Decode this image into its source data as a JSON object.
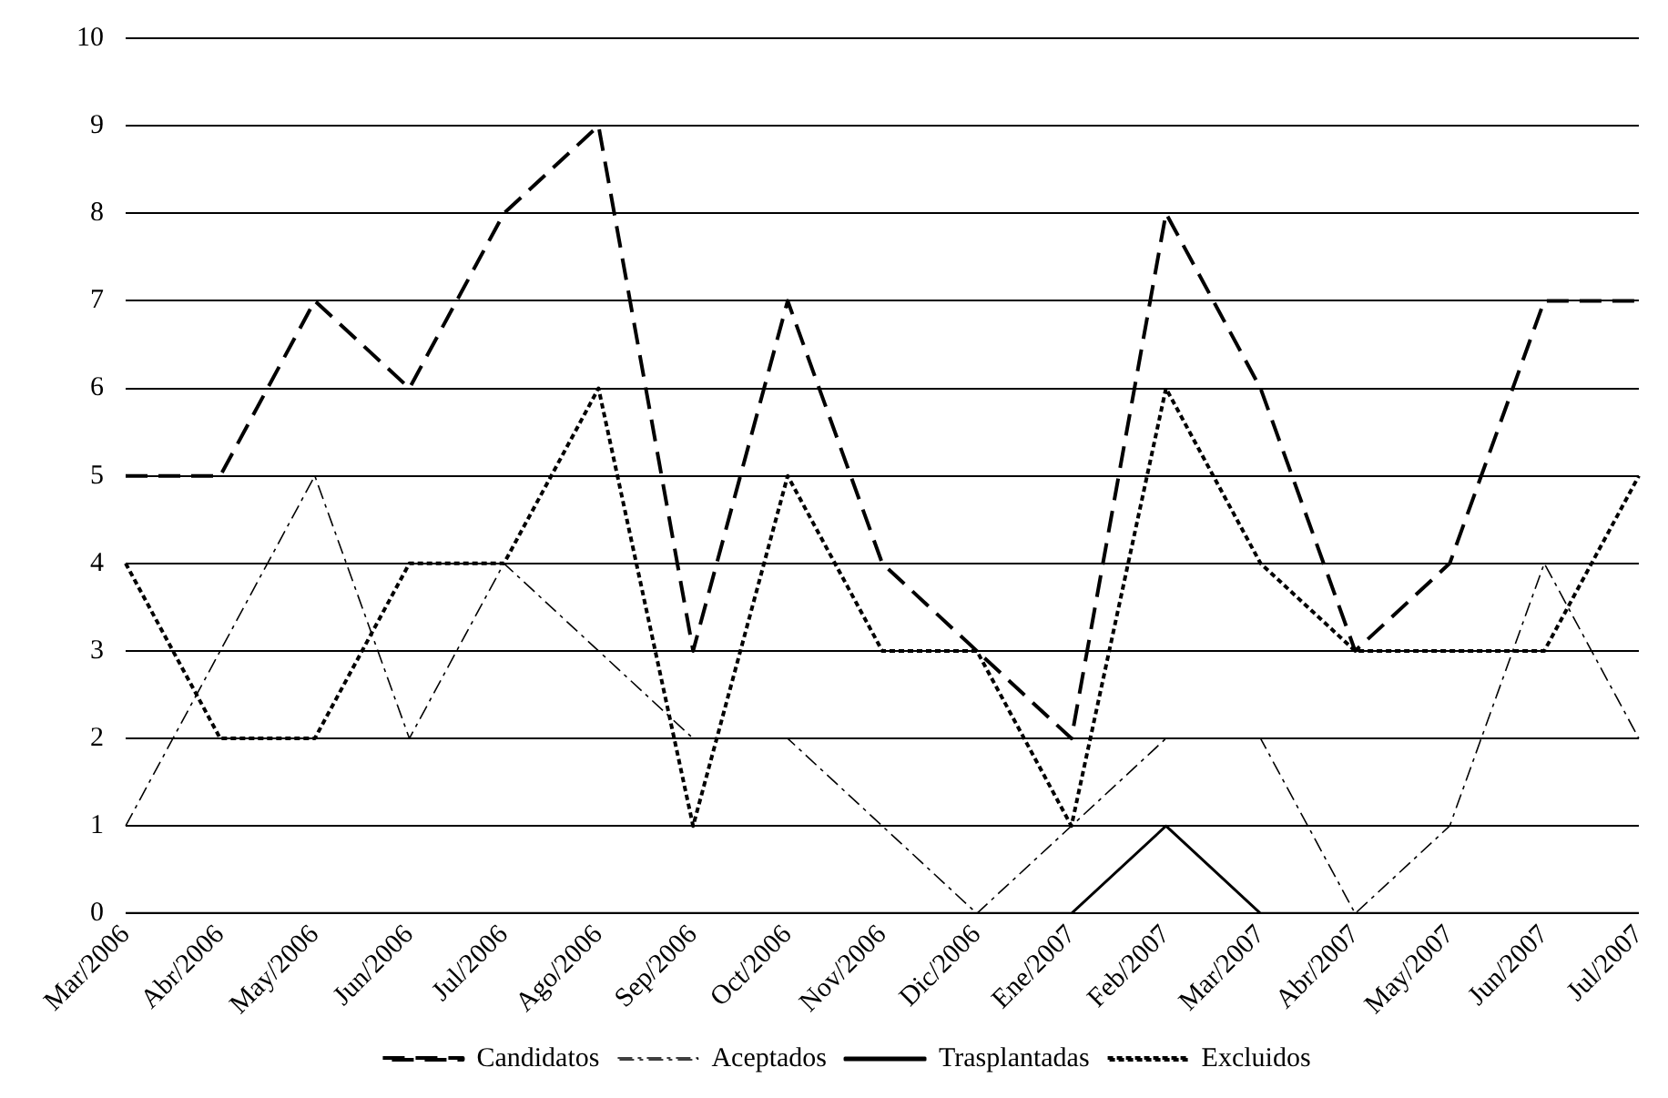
{
  "chart_data": {
    "type": "line",
    "categories": [
      "Mar/2006",
      "Abr/2006",
      "May/2006",
      "Jun/2006",
      "Jul/2006",
      "Ago/2006",
      "Sep/2006",
      "Oct/2006",
      "Nov/2006",
      "Dic/2006",
      "Ene/2007",
      "Feb/2007",
      "Mar/2007",
      "Abr/2007",
      "May/2007",
      "Jun/2007",
      "Jul/2007"
    ],
    "series": [
      {
        "name": "Candidatos",
        "color": "#000000",
        "line_style": "dashed",
        "values": [
          5,
          5,
          7,
          6,
          8,
          9,
          3,
          7,
          4,
          3,
          2,
          8,
          6,
          3,
          4,
          7,
          7
        ]
      },
      {
        "name": "Aceptados",
        "color": "#000000",
        "line_style": "dashdot",
        "values": [
          1,
          3,
          5,
          2,
          4,
          3,
          2,
          2,
          1,
          0,
          1,
          2,
          2,
          0,
          1,
          4,
          2
        ]
      },
      {
        "name": "Trasplantadas",
        "color": "#000000",
        "line_style": "solid",
        "values": [
          0,
          0,
          0,
          0,
          0,
          0,
          0,
          0,
          0,
          0,
          0,
          1,
          0,
          0,
          0,
          0,
          0
        ]
      },
      {
        "name": "Excluidos",
        "color": "#000000",
        "line_style": "dotted",
        "values": [
          4,
          2,
          2,
          4,
          4,
          6,
          1,
          5,
          3,
          3,
          1,
          6,
          4,
          3,
          3,
          3,
          5
        ]
      }
    ],
    "ylim": [
      0,
      10
    ],
    "yticks": [
      0,
      1,
      2,
      3,
      4,
      5,
      6,
      7,
      8,
      9,
      10
    ],
    "grid": "y",
    "legend": "bottom",
    "marker": "none"
  }
}
